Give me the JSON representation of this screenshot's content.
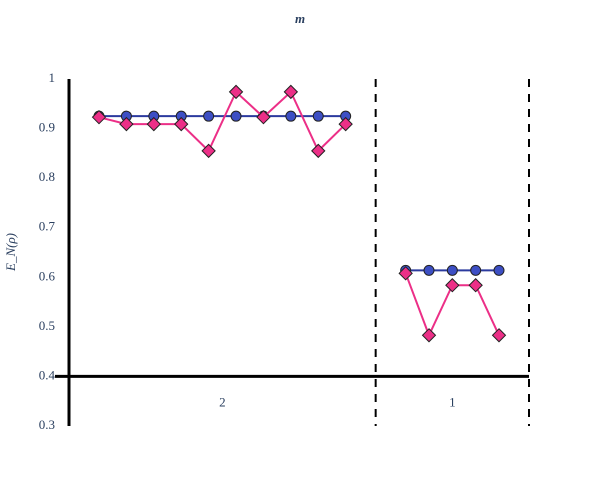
{
  "chart_data": {
    "type": "line",
    "title": "m",
    "y_label": "E_N(ρ)",
    "categories": [
      "2",
      "1"
    ],
    "series": [
      {
        "color": "#3d4fc4",
        "line_color": "#2b3a9e",
        "marker": "circle",
        "values": [
          [
            0.925,
            0.925,
            0.925,
            0.925,
            0.925,
            0.925,
            0.925,
            0.925,
            0.925,
            0.925
          ],
          [
            0.614,
            0.614,
            0.614,
            0.614,
            0.614
          ]
        ]
      },
      {
        "color": "#ec2f87",
        "line_color": "#ec2f87",
        "marker": "diamond",
        "values": [
          [
            0.923,
            0.909,
            0.909,
            0.909,
            0.855,
            0.974,
            0.923,
            0.974,
            0.855,
            0.909
          ],
          [
            0.608,
            0.483,
            0.584,
            0.584,
            0.483
          ]
        ]
      }
    ],
    "ylim": [
      0.3,
      1
    ],
    "yticks": [
      0.3,
      0.4,
      0.5,
      0.6,
      0.7,
      0.8,
      0.9,
      1
    ],
    "baseline": 0.4
  }
}
